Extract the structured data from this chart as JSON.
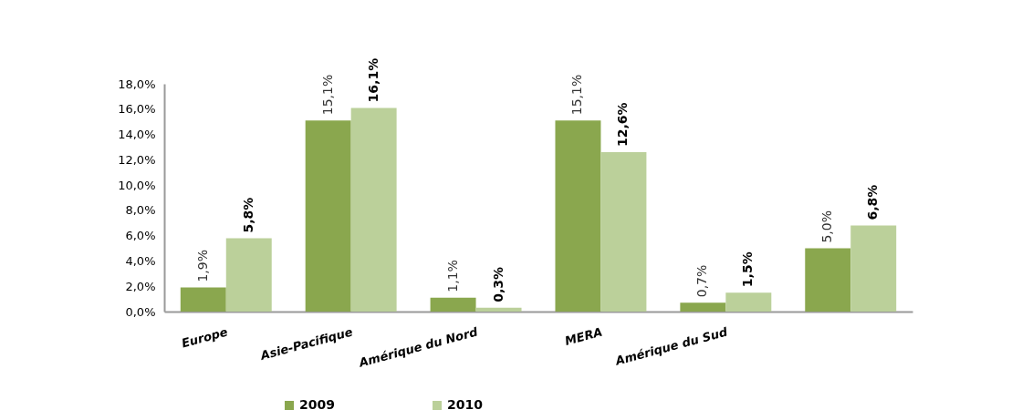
{
  "chart_data": {
    "type": "bar",
    "categories": [
      "Europe",
      "Asie-Pacifique",
      "Amérique du Nord",
      "MERA",
      "Amérique du Sud",
      null
    ],
    "series": [
      {
        "name": "2009",
        "color": "#8aa74e",
        "values": [
          1.9,
          15.1,
          1.1,
          15.1,
          0.7,
          5.0
        ],
        "value_labels": [
          "1,9%",
          "15,1%",
          "1,1%",
          "15,1%",
          "0,7%",
          "5,0%"
        ]
      },
      {
        "name": "2010",
        "color": "#bbd09a",
        "values": [
          5.8,
          16.1,
          0.3,
          12.6,
          1.5,
          6.8
        ],
        "value_labels": [
          "5,8%",
          "16,1%",
          "0,3%",
          "12,6%",
          "1,5%",
          "6,8%"
        ]
      }
    ],
    "ylim": [
      0,
      18
    ],
    "yticks": [
      {
        "value": 0,
        "label": "0,0%"
      },
      {
        "value": 2,
        "label": "2,0%"
      },
      {
        "value": 4,
        "label": "4,0%"
      },
      {
        "value": 6,
        "label": "6,0%"
      },
      {
        "value": 8,
        "label": "8,0%"
      },
      {
        "value": 10,
        "label": "10,0%"
      },
      {
        "value": 12,
        "label": "12,0%"
      },
      {
        "value": 14,
        "label": "14,0%"
      },
      {
        "value": 16,
        "label": "16,0%"
      },
      {
        "value": 18,
        "label": "18,0%"
      }
    ],
    "legend": "bottom"
  }
}
